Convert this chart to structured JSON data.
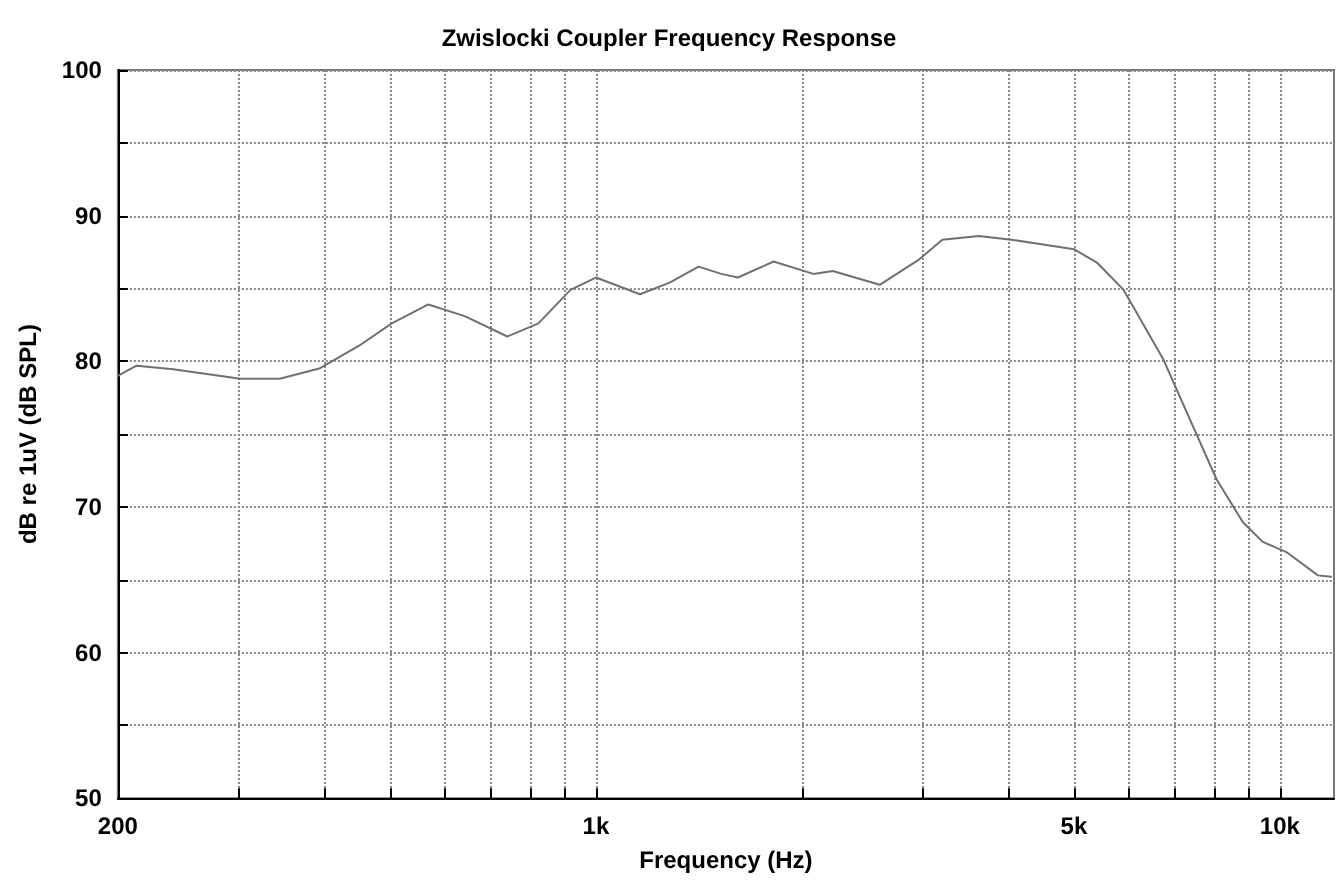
{
  "chart_data": {
    "type": "line",
    "title": "Zwislocki Coupler Frequency Response",
    "xlabel": "Frequency (Hz)",
    "ylabel": "dB re 1uV (dB SPL)",
    "x": [
      200,
      213,
      241,
      302,
      345,
      394,
      450,
      503,
      569,
      643,
      742,
      824,
      918,
      1000,
      1160,
      1282,
      1413,
      1525,
      1613,
      1819,
      2080,
      2220,
      2600,
      2970,
      3210,
      3630,
      4050,
      4530,
      5000,
      5410,
      5910,
      6760,
      7390,
      8080,
      8830,
      9440,
      10220,
      11370,
      11880
    ],
    "series": [
      {
        "color": "#707070",
        "values": [
          79.0,
          79.7,
          79.45,
          78.8,
          78.8,
          79.5,
          81.05,
          82.6,
          83.9,
          83.1,
          81.7,
          82.6,
          84.9,
          85.75,
          84.6,
          85.4,
          86.5,
          86.0,
          85.75,
          86.85,
          86.0,
          86.2,
          85.25,
          87.0,
          88.35,
          88.6,
          88.35,
          88.0,
          87.7,
          86.75,
          84.9,
          80.1,
          76.0,
          71.9,
          68.95,
          67.6,
          66.9,
          65.3,
          65.2
        ]
      }
    ],
    "log": "x",
    "xlim": [
      200,
      12000
    ],
    "xticks": [
      {
        "value": 200,
        "label": "200"
      },
      {
        "value": 300,
        "label": null
      },
      {
        "value": 400,
        "label": null
      },
      {
        "value": 500,
        "label": null
      },
      {
        "value": 600,
        "label": null
      },
      {
        "value": 700,
        "label": null
      },
      {
        "value": 800,
        "label": null
      },
      {
        "value": 900,
        "label": null
      },
      {
        "value": 1000,
        "label": "1k"
      },
      {
        "value": 2000,
        "label": null
      },
      {
        "value": 3000,
        "label": null
      },
      {
        "value": 4000,
        "label": null
      },
      {
        "value": 5000,
        "label": "5k"
      },
      {
        "value": 6000,
        "label": null
      },
      {
        "value": 7000,
        "label": null
      },
      {
        "value": 8000,
        "label": null
      },
      {
        "value": 9000,
        "label": null
      },
      {
        "value": 10000,
        "label": "10k"
      }
    ],
    "ylim": [
      50,
      100
    ],
    "yticks": [
      50,
      {
        "value": 55,
        "label": null
      },
      60,
      {
        "value": 65,
        "label": null
      },
      70,
      {
        "value": 75,
        "label": null
      },
      80,
      {
        "value": 85,
        "label": null
      },
      90,
      {
        "value": 95,
        "label": null
      },
      100
    ],
    "grid": true,
    "marker": "none",
    "line_style": "solid"
  }
}
